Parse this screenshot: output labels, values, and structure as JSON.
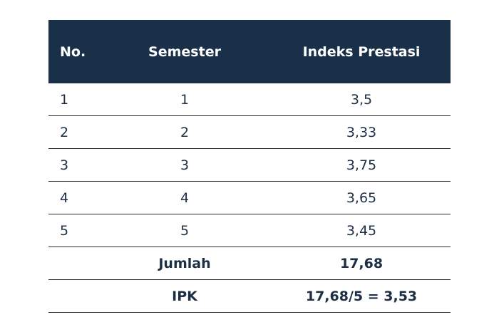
{
  "table": {
    "header": [
      "No.",
      "Semester",
      "Indeks Prestasi"
    ],
    "rows": [
      [
        "1",
        "1",
        "3,5"
      ],
      [
        "2",
        "2",
        "3,33"
      ],
      [
        "3",
        "3",
        "3,75"
      ],
      [
        "4",
        "4",
        "3,65"
      ],
      [
        "5",
        "5",
        "3,45"
      ]
    ],
    "footer": [
      {
        "label": "Jumlah",
        "value": "17,68"
      },
      {
        "label": "IPK",
        "value": "17,68/5 = 3,53"
      }
    ]
  }
}
